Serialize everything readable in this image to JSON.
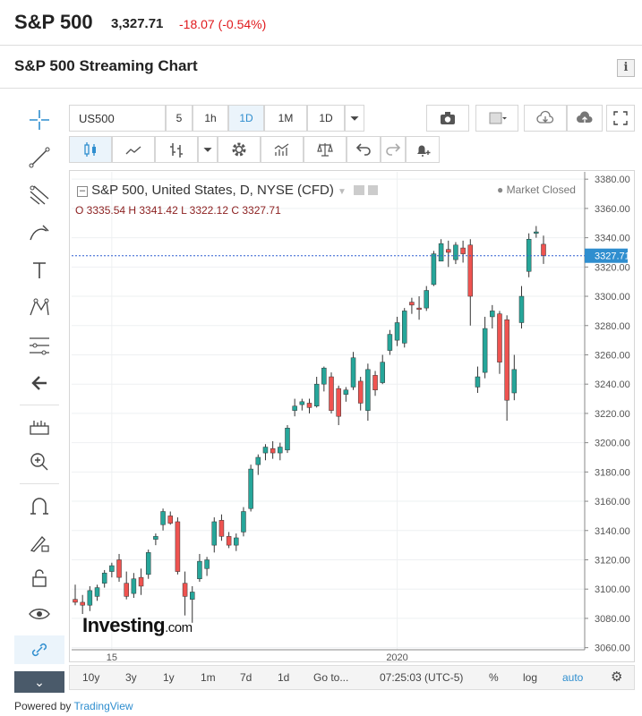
{
  "header": {
    "name": "S&P 500",
    "price": "3,327.71",
    "change": "-18.07 (-0.54%)"
  },
  "section_title": "S&P 500 Streaming Chart",
  "info_icon": "i",
  "toolbar": {
    "symbol": "US500",
    "intervals": [
      "5",
      "1h",
      "1D",
      "1M",
      "1D"
    ],
    "active_interval_index": 2
  },
  "legend": {
    "title": "S&P 500, United States, D, NYSE (CFD)",
    "ohlc": "O 3335.54  H 3341.42  L 3322.12  C 3327.71",
    "status": "Market Closed"
  },
  "logo": {
    "brand": "Investing",
    "suffix": ".com"
  },
  "bottom_bar": {
    "ranges": [
      "10y",
      "3y",
      "1y",
      "1m",
      "7d",
      "1d",
      "Go to..."
    ],
    "time": "07:25:03 (UTC-5)",
    "pct": "%",
    "log": "log",
    "auto": "auto"
  },
  "powered_by": {
    "text": "Powered by",
    "brand": "TradingView"
  },
  "chart_data": {
    "type": "candlestick",
    "ylim": [
      3050,
      3385
    ],
    "y_ticks": [
      3060,
      3080,
      3100,
      3120,
      3140,
      3160,
      3180,
      3200,
      3220,
      3240,
      3260,
      3280,
      3300,
      3320,
      3340,
      3360,
      3380
    ],
    "x_tick_labels": [
      {
        "label": "15",
        "at_index": 5
      },
      {
        "label": "2020",
        "at_index": 44
      }
    ],
    "last_price_label": "3327.71",
    "last_price": 3327.71,
    "colors": {
      "up": "#26a69a",
      "down": "#ef5350",
      "price_line": "#2f5fd0",
      "price_label": "#2f8ecf"
    },
    "candles": [
      [
        3093,
        3103,
        3089,
        3091
      ],
      [
        3091,
        3096,
        3083,
        3089
      ],
      [
        3089,
        3102,
        3085,
        3099
      ],
      [
        3095,
        3103,
        3092,
        3101
      ],
      [
        3104,
        3113,
        3101,
        3111
      ],
      [
        3112,
        3118,
        3108,
        3116
      ],
      [
        3120,
        3124,
        3105,
        3108
      ],
      [
        3104,
        3112,
        3093,
        3095
      ],
      [
        3097,
        3111,
        3094,
        3107
      ],
      [
        3108,
        3114,
        3096,
        3102
      ],
      [
        3110,
        3127,
        3107,
        3125
      ],
      [
        3134,
        3138,
        3130,
        3136
      ],
      [
        3144,
        3155,
        3140,
        3153
      ],
      [
        3150,
        3153,
        3144,
        3145
      ],
      [
        3146,
        3149,
        3110,
        3112
      ],
      [
        3104,
        3112,
        3082,
        3095
      ],
      [
        3093,
        3102,
        3077,
        3098
      ],
      [
        3107,
        3124,
        3105,
        3119
      ],
      [
        3114,
        3122,
        3109,
        3120
      ],
      [
        3130,
        3149,
        3125,
        3146
      ],
      [
        3147,
        3151,
        3133,
        3136
      ],
      [
        3136,
        3139,
        3128,
        3130
      ],
      [
        3130,
        3138,
        3126,
        3135
      ],
      [
        3139,
        3156,
        3136,
        3153
      ],
      [
        3155,
        3185,
        3153,
        3182
      ],
      [
        3185,
        3192,
        3178,
        3190
      ],
      [
        3193,
        3199,
        3188,
        3197
      ],
      [
        3196,
        3201,
        3189,
        3193
      ],
      [
        3193,
        3200,
        3188,
        3197
      ],
      [
        3195,
        3212,
        3193,
        3210
      ],
      [
        3222,
        3230,
        3218,
        3225
      ],
      [
        3226,
        3230,
        3222,
        3228
      ],
      [
        3227,
        3230,
        3220,
        3224
      ],
      [
        3225,
        3245,
        3224,
        3240
      ],
      [
        3240,
        3252,
        3235,
        3251
      ],
      [
        3245,
        3248,
        3220,
        3222
      ],
      [
        3237,
        3239,
        3212,
        3218
      ],
      [
        3233,
        3238,
        3228,
        3236
      ],
      [
        3238,
        3262,
        3236,
        3258
      ],
      [
        3242,
        3245,
        3222,
        3227
      ],
      [
        3222,
        3254,
        3215,
        3250
      ],
      [
        3246,
        3249,
        3232,
        3236
      ],
      [
        3241,
        3260,
        3240,
        3255
      ],
      [
        3263,
        3277,
        3260,
        3274
      ],
      [
        3270,
        3286,
        3266,
        3282
      ],
      [
        3268,
        3292,
        3265,
        3290
      ],
      [
        3296,
        3299,
        3288,
        3294
      ],
      [
        3292,
        3300,
        3284,
        3291
      ],
      [
        3292,
        3307,
        3290,
        3304
      ],
      [
        3308,
        3331,
        3307,
        3329
      ],
      [
        3324,
        3339,
        3324,
        3336
      ],
      [
        3332,
        3338,
        3320,
        3330
      ],
      [
        3325,
        3337,
        3322,
        3335
      ],
      [
        3333,
        3338,
        3323,
        3329
      ],
      [
        3335,
        3339,
        3280,
        3300
      ],
      [
        3238,
        3252,
        3234,
        3245
      ],
      [
        3248,
        3286,
        3244,
        3278
      ],
      [
        3286,
        3294,
        3278,
        3290
      ],
      [
        3288,
        3290,
        3247,
        3255
      ],
      [
        3284,
        3287,
        3215,
        3229
      ],
      [
        3234,
        3260,
        3229,
        3250
      ],
      [
        3282,
        3307,
        3278,
        3300
      ],
      [
        3317,
        3343,
        3313,
        3339
      ],
      [
        3343,
        3348,
        3340,
        3344
      ],
      [
        3335.54,
        3341.42,
        3322.12,
        3327.71
      ]
    ]
  }
}
